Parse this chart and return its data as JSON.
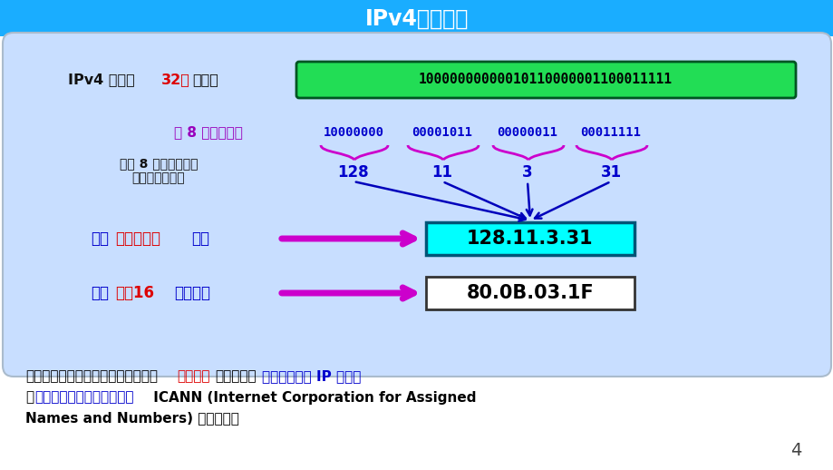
{
  "title": "IPv4地址基础",
  "title_bg": "#1AADFF",
  "title_color": "#FFFFFF",
  "bg_color": "#FFFFFF",
  "panel_bg": "#C8DEFF",
  "panel_border": "#AABBCC",
  "binary32_label_black": "IPv4 地址：",
  "binary32_label_red": "32位",
  "binary32_label_black2": "二进制",
  "binary32_value": "10000000000010110000001100011111",
  "binary32_box_bg": "#22DD55",
  "binary32_box_border": "#005522",
  "group_label_purple": "每 8 位分为一组",
  "groups": [
    "10000000",
    "00001011",
    "00000011",
    "00011111"
  ],
  "decimals": [
    "128",
    "11",
    "3",
    "31"
  ],
  "dec_label1": "将每 8 位的二进制数",
  "dec_label2": "转换为十进制数",
  "dotted_dec_label_part1": "采用",
  "dotted_dec_label_red": "点分十进制",
  "dotted_dec_label_part2": "记法",
  "dotted_dec_value": "128.11.3.31",
  "dotted_dec_box_bg": "#00FFFF",
  "dotted_dec_box_border": "#005577",
  "hex_label_part1": "采用",
  "hex_label_red": "点分16",
  "hex_label_part2": "进制记法",
  "hex_value": "80.0B.03.1F",
  "hex_box_bg": "#FFFFFF",
  "hex_box_border": "#333333",
  "arrow_color": "#CC00CC",
  "dec_arrow_color": "#0000BB",
  "brace_color": "#CC00CC",
  "bottom_line1_black1": "互联网上的每台主机（或路由器）的",
  "bottom_line1_red": "每个网口",
  "bottom_line1_black2": "分配一个在",
  "bottom_line1_blue": "全世界唯一的 IP 地址。",
  "bottom_line2_black1": "由",
  "bottom_line2_blue": "互联网名字和数字分配机构",
  "bottom_line2_black2": " ICANN (Internet Corporation for Assigned",
  "bottom_line3_black": "Names and Numbers) 进行分配。",
  "page_num": "4",
  "group_color": "#0000CC",
  "decimal_color": "#0000CC",
  "purple_label_color": "#9900BB",
  "label_color": "#0000CC"
}
